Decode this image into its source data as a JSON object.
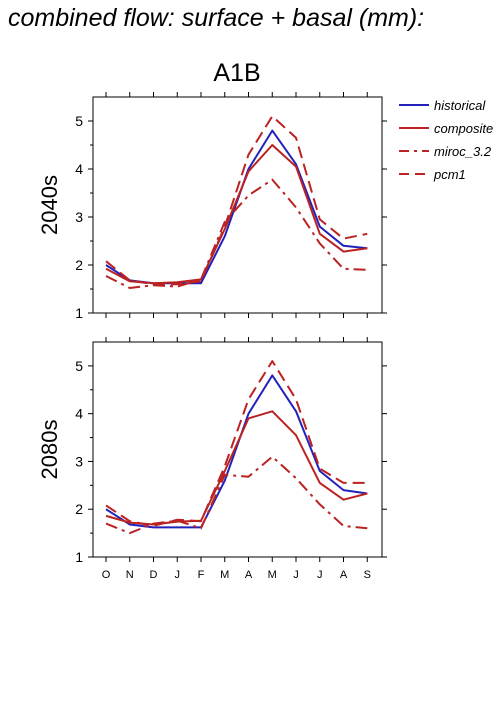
{
  "title": "combined flow: surface + basal (mm):",
  "chart_data": {
    "type": "line",
    "scenario_label": "A1B",
    "categories": [
      "O",
      "N",
      "D",
      "J",
      "F",
      "M",
      "A",
      "M",
      "J",
      "J",
      "A",
      "S"
    ],
    "ylim": [
      1,
      5.5
    ],
    "yticks": [
      1,
      2,
      3,
      4,
      5
    ],
    "legend": {
      "placement": "top-right",
      "entries": [
        "historical",
        "composite",
        "miroc_3.2",
        "pcm1"
      ]
    },
    "colors": {
      "historical": "#2222bb",
      "future": "#bb2222"
    },
    "panels": [
      {
        "period": "2040s",
        "series": [
          {
            "name": "historical",
            "style": "solid",
            "color": "#2222bb",
            "values": [
              2.0,
              1.68,
              1.62,
              1.62,
              1.62,
              2.6,
              4.0,
              4.8,
              4.1,
              2.8,
              2.4,
              2.35
            ]
          },
          {
            "name": "composite",
            "style": "solid",
            "color": "#bb2222",
            "values": [
              1.92,
              1.66,
              1.62,
              1.64,
              1.7,
              2.75,
              3.95,
              4.5,
              4.05,
              2.65,
              2.28,
              2.35
            ]
          },
          {
            "name": "miroc_3.2",
            "style": "dashdot",
            "color": "#bb2222",
            "values": [
              1.77,
              1.52,
              1.58,
              1.55,
              1.7,
              2.9,
              3.45,
              3.78,
              3.2,
              2.45,
              1.92,
              1.9
            ]
          },
          {
            "name": "pcm1",
            "style": "dash",
            "color": "#bb2222",
            "values": [
              2.08,
              1.68,
              1.6,
              1.6,
              1.66,
              2.8,
              4.3,
              5.1,
              4.65,
              2.95,
              2.55,
              2.65
            ]
          }
        ]
      },
      {
        "period": "2080s",
        "series": [
          {
            "name": "historical",
            "style": "solid",
            "color": "#2222bb",
            "values": [
              2.0,
              1.68,
              1.62,
              1.62,
              1.62,
              2.6,
              4.0,
              4.8,
              4.05,
              2.8,
              2.4,
              2.33
            ]
          },
          {
            "name": "composite",
            "style": "solid",
            "color": "#bb2222",
            "values": [
              1.86,
              1.72,
              1.68,
              1.74,
              1.76,
              2.8,
              3.9,
              4.05,
              3.55,
              2.55,
              2.2,
              2.33
            ]
          },
          {
            "name": "miroc_3.2",
            "style": "dashdot",
            "color": "#bb2222",
            "values": [
              1.7,
              1.5,
              1.7,
              1.76,
              1.6,
              2.72,
              2.68,
              3.1,
              2.65,
              2.1,
              1.65,
              1.6
            ]
          },
          {
            "name": "pcm1",
            "style": "dash",
            "color": "#bb2222",
            "values": [
              2.08,
              1.75,
              1.65,
              1.78,
              1.75,
              2.9,
              4.3,
              5.1,
              4.3,
              2.85,
              2.55,
              2.55
            ]
          }
        ]
      }
    ]
  }
}
